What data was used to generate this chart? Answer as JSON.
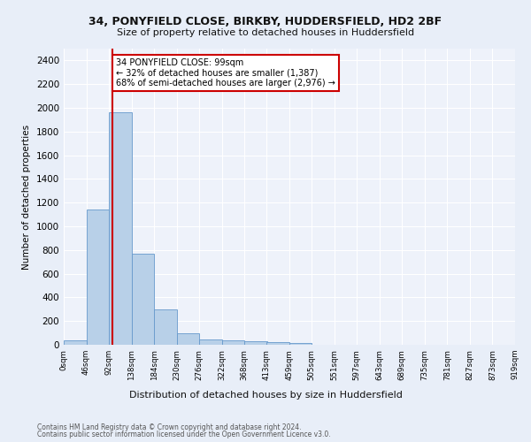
{
  "title1": "34, PONYFIELD CLOSE, BIRKBY, HUDDERSFIELD, HD2 2BF",
  "title2": "Size of property relative to detached houses in Huddersfield",
  "xlabel": "Distribution of detached houses by size in Huddersfield",
  "ylabel": "Number of detached properties",
  "footer1": "Contains HM Land Registry data © Crown copyright and database right 2024.",
  "footer2": "Contains public sector information licensed under the Open Government Licence v3.0.",
  "property_size": 99,
  "bin_edges": [
    0,
    46,
    92,
    138,
    184,
    230,
    276,
    322,
    368,
    413,
    459,
    505,
    551,
    597,
    643,
    689,
    735,
    781,
    827,
    873,
    919
  ],
  "bar_values": [
    35,
    1140,
    1960,
    770,
    300,
    100,
    48,
    40,
    33,
    20,
    18,
    0,
    0,
    0,
    0,
    0,
    0,
    0,
    0,
    0
  ],
  "bar_color": "#b8d0e8",
  "bar_edge_color": "#6699cc",
  "highlight_line_color": "#cc0000",
  "annotation_text": "34 PONYFIELD CLOSE: 99sqm\n← 32% of detached houses are smaller (1,387)\n68% of semi-detached houses are larger (2,976) →",
  "annotation_box_color": "#ffffff",
  "annotation_box_edge": "#cc0000",
  "background_color": "#e8eef8",
  "plot_background": "#eef2fa",
  "ylim": [
    0,
    2500
  ],
  "yticks": [
    0,
    200,
    400,
    600,
    800,
    1000,
    1200,
    1400,
    1600,
    1800,
    2000,
    2200,
    2400
  ],
  "tick_labels": [
    "0sqm",
    "46sqm",
    "92sqm",
    "138sqm",
    "184sqm",
    "230sqm",
    "276sqm",
    "322sqm",
    "368sqm",
    "413sqm",
    "459sqm",
    "505sqm",
    "551sqm",
    "597sqm",
    "643sqm",
    "689sqm",
    "735sqm",
    "781sqm",
    "827sqm",
    "873sqm",
    "919sqm"
  ]
}
